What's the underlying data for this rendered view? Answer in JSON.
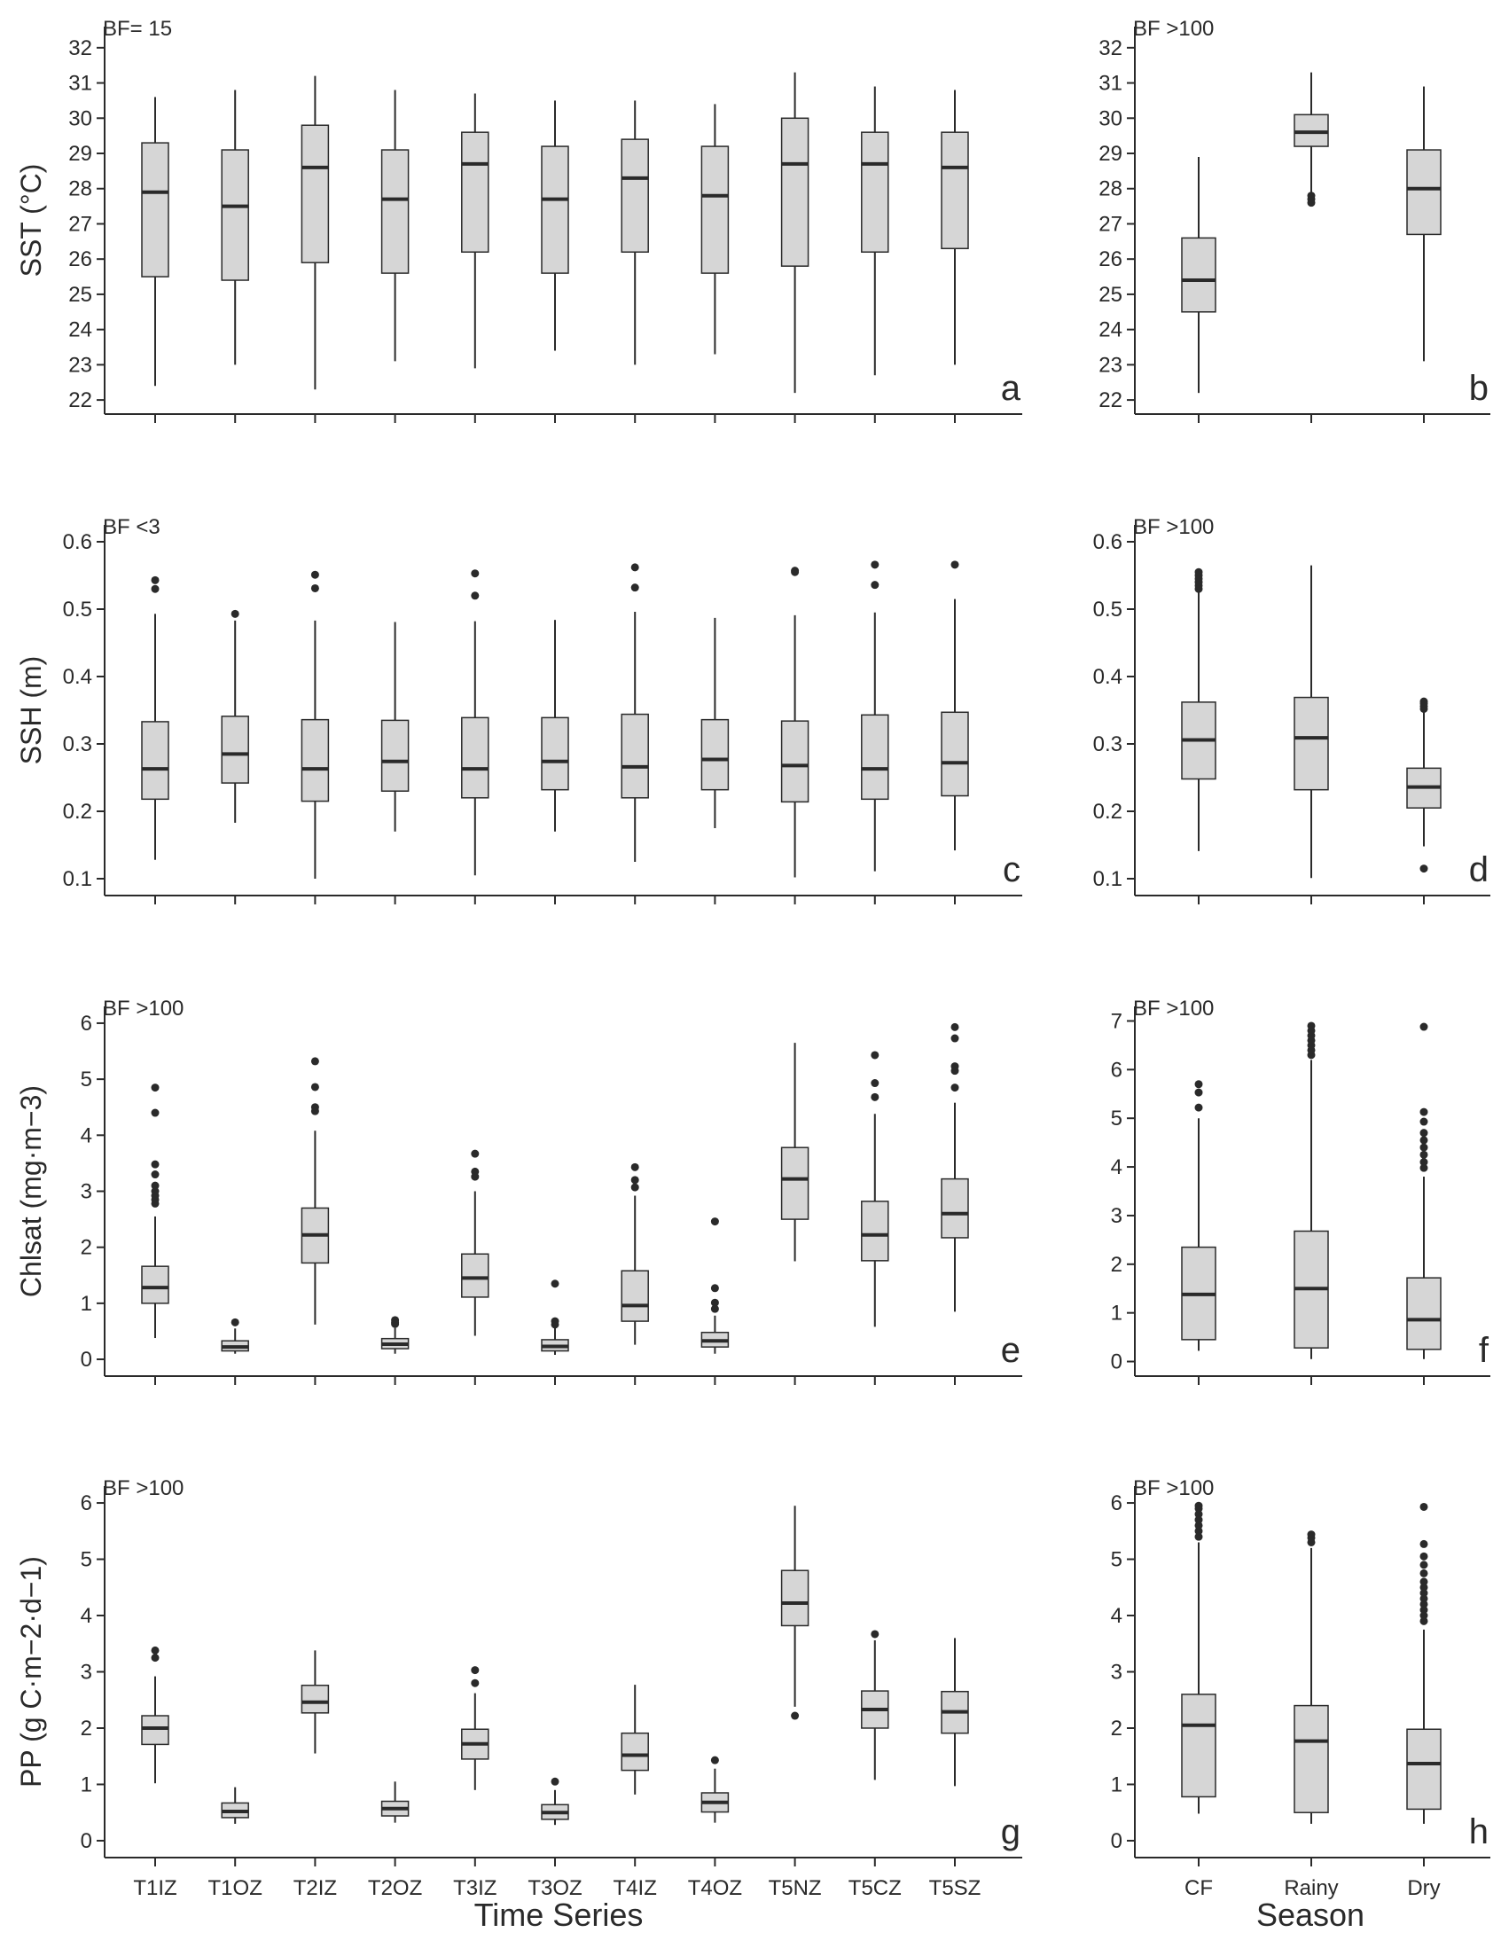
{
  "x_titles": {
    "left": "Time Series",
    "right": "Season"
  },
  "chart_data": [
    {
      "id": "a",
      "type": "box",
      "panel_letter": "a",
      "bf": "BF= 15",
      "ylabel": "SST (°C)",
      "ylim": [
        21.6,
        32.6
      ],
      "yticks": [
        22,
        23,
        24,
        25,
        26,
        27,
        28,
        29,
        30,
        31,
        32
      ],
      "categories": [
        "T1IZ",
        "T1OZ",
        "T2IZ",
        "T2OZ",
        "T3IZ",
        "T3OZ",
        "T4IZ",
        "T4OZ",
        "T5NZ",
        "T5CZ",
        "T5SZ"
      ],
      "boxes": [
        {
          "low": 22.4,
          "q1": 25.5,
          "median": 27.9,
          "q3": 29.3,
          "high": 30.6,
          "outliers": []
        },
        {
          "low": 23.0,
          "q1": 25.4,
          "median": 27.5,
          "q3": 29.1,
          "high": 30.8,
          "outliers": []
        },
        {
          "low": 22.3,
          "q1": 25.9,
          "median": 28.6,
          "q3": 29.8,
          "high": 31.2,
          "outliers": []
        },
        {
          "low": 23.1,
          "q1": 25.6,
          "median": 27.7,
          "q3": 29.1,
          "high": 30.8,
          "outliers": []
        },
        {
          "low": 22.9,
          "q1": 26.2,
          "median": 28.7,
          "q3": 29.6,
          "high": 30.7,
          "outliers": []
        },
        {
          "low": 23.4,
          "q1": 25.6,
          "median": 27.7,
          "q3": 29.2,
          "high": 30.5,
          "outliers": []
        },
        {
          "low": 23.0,
          "q1": 26.2,
          "median": 28.3,
          "q3": 29.4,
          "high": 30.5,
          "outliers": []
        },
        {
          "low": 23.3,
          "q1": 25.6,
          "median": 27.8,
          "q3": 29.2,
          "high": 30.4,
          "outliers": []
        },
        {
          "low": 22.2,
          "q1": 25.8,
          "median": 28.7,
          "q3": 30.0,
          "high": 31.3,
          "outliers": []
        },
        {
          "low": 22.7,
          "q1": 26.2,
          "median": 28.7,
          "q3": 29.6,
          "high": 30.9,
          "outliers": []
        },
        {
          "low": 23.0,
          "q1": 26.3,
          "median": 28.6,
          "q3": 29.6,
          "high": 30.8,
          "outliers": []
        }
      ]
    },
    {
      "id": "b",
      "type": "box",
      "panel_letter": "b",
      "bf": "BF >100",
      "ylabel": "",
      "ylim": [
        21.6,
        32.6
      ],
      "yticks": [
        22,
        23,
        24,
        25,
        26,
        27,
        28,
        29,
        30,
        31,
        32
      ],
      "categories": [
        "CF",
        "Rainy",
        "Dry"
      ],
      "boxes": [
        {
          "low": 22.2,
          "q1": 24.5,
          "median": 25.4,
          "q3": 26.6,
          "high": 28.9,
          "outliers": []
        },
        {
          "low": 27.9,
          "q1": 29.2,
          "median": 29.6,
          "q3": 30.1,
          "high": 31.3,
          "outliers": [
            27.6,
            27.7,
            27.8
          ]
        },
        {
          "low": 23.1,
          "q1": 26.7,
          "median": 28.0,
          "q3": 29.1,
          "high": 30.9,
          "outliers": []
        }
      ]
    },
    {
      "id": "c",
      "type": "box",
      "panel_letter": "c",
      "bf": "BF <3",
      "ylabel": "SSH (m)",
      "ylim": [
        0.075,
        0.625
      ],
      "yticks": [
        0.1,
        0.2,
        0.3,
        0.4,
        0.5,
        0.6
      ],
      "categories": [
        "T1IZ",
        "T1OZ",
        "T2IZ",
        "T2OZ",
        "T3IZ",
        "T3OZ",
        "T4IZ",
        "T4OZ",
        "T5NZ",
        "T5CZ",
        "T5SZ"
      ],
      "boxes": [
        {
          "low": 0.128,
          "q1": 0.218,
          "median": 0.263,
          "q3": 0.333,
          "high": 0.493,
          "outliers": [
            0.53,
            0.543
          ]
        },
        {
          "low": 0.183,
          "q1": 0.242,
          "median": 0.285,
          "q3": 0.341,
          "high": 0.483,
          "outliers": [
            0.493
          ]
        },
        {
          "low": 0.1,
          "q1": 0.215,
          "median": 0.263,
          "q3": 0.336,
          "high": 0.483,
          "outliers": [
            0.531,
            0.551
          ]
        },
        {
          "low": 0.17,
          "q1": 0.23,
          "median": 0.274,
          "q3": 0.335,
          "high": 0.481,
          "outliers": []
        },
        {
          "low": 0.105,
          "q1": 0.22,
          "median": 0.263,
          "q3": 0.339,
          "high": 0.482,
          "outliers": [
            0.52,
            0.553
          ]
        },
        {
          "low": 0.17,
          "q1": 0.232,
          "median": 0.274,
          "q3": 0.339,
          "high": 0.484,
          "outliers": []
        },
        {
          "low": 0.125,
          "q1": 0.22,
          "median": 0.266,
          "q3": 0.344,
          "high": 0.496,
          "outliers": [
            0.532,
            0.562
          ]
        },
        {
          "low": 0.175,
          "q1": 0.232,
          "median": 0.277,
          "q3": 0.336,
          "high": 0.487,
          "outliers": []
        },
        {
          "low": 0.102,
          "q1": 0.214,
          "median": 0.268,
          "q3": 0.334,
          "high": 0.491,
          "outliers": [
            0.555,
            0.557
          ]
        },
        {
          "low": 0.111,
          "q1": 0.218,
          "median": 0.263,
          "q3": 0.343,
          "high": 0.495,
          "outliers": [
            0.536,
            0.566
          ]
        },
        {
          "low": 0.142,
          "q1": 0.223,
          "median": 0.272,
          "q3": 0.347,
          "high": 0.515,
          "outliers": [
            0.566
          ]
        }
      ]
    },
    {
      "id": "d",
      "type": "box",
      "panel_letter": "d",
      "bf": "BF >100",
      "ylabel": "",
      "ylim": [
        0.075,
        0.625
      ],
      "yticks": [
        0.1,
        0.2,
        0.3,
        0.4,
        0.5,
        0.6
      ],
      "categories": [
        "CF",
        "Rainy",
        "Dry"
      ],
      "boxes": [
        {
          "low": 0.141,
          "q1": 0.248,
          "median": 0.306,
          "q3": 0.362,
          "high": 0.525,
          "outliers": [
            0.53,
            0.535,
            0.54,
            0.545,
            0.55,
            0.555
          ]
        },
        {
          "low": 0.101,
          "q1": 0.232,
          "median": 0.309,
          "q3": 0.369,
          "high": 0.565,
          "outliers": []
        },
        {
          "low": 0.148,
          "q1": 0.205,
          "median": 0.236,
          "q3": 0.264,
          "high": 0.35,
          "outliers": [
            0.115,
            0.352,
            0.356,
            0.36,
            0.363
          ]
        }
      ]
    },
    {
      "id": "e",
      "type": "box",
      "panel_letter": "e",
      "bf": "BF >100",
      "ylabel": "Chlsat (mg·m−3)",
      "ylim": [
        -0.3,
        6.3
      ],
      "yticks": [
        0,
        1,
        2,
        3,
        4,
        5,
        6
      ],
      "categories": [
        "T1IZ",
        "T1OZ",
        "T2IZ",
        "T2OZ",
        "T3IZ",
        "T3OZ",
        "T4IZ",
        "T4OZ",
        "T5NZ",
        "T5CZ",
        "T5SZ"
      ],
      "boxes": [
        {
          "low": 0.38,
          "q1": 1.0,
          "median": 1.28,
          "q3": 1.66,
          "high": 2.55,
          "outliers": [
            2.78,
            2.85,
            2.92,
            3.0,
            3.1,
            3.3,
            3.48,
            4.4,
            4.85
          ]
        },
        {
          "low": 0.1,
          "q1": 0.15,
          "median": 0.22,
          "q3": 0.33,
          "high": 0.55,
          "outliers": [
            0.66
          ]
        },
        {
          "low": 0.62,
          "q1": 1.72,
          "median": 2.22,
          "q3": 2.7,
          "high": 4.08,
          "outliers": [
            4.43,
            4.5,
            4.86,
            5.32
          ]
        },
        {
          "low": 0.1,
          "q1": 0.19,
          "median": 0.27,
          "q3": 0.37,
          "high": 0.56,
          "outliers": [
            0.63,
            0.66,
            0.7
          ]
        },
        {
          "low": 0.42,
          "q1": 1.11,
          "median": 1.45,
          "q3": 1.88,
          "high": 3.0,
          "outliers": [
            3.26,
            3.35,
            3.67
          ]
        },
        {
          "low": 0.08,
          "q1": 0.15,
          "median": 0.23,
          "q3": 0.35,
          "high": 0.56,
          "outliers": [
            0.62,
            0.68,
            1.35
          ]
        },
        {
          "low": 0.26,
          "q1": 0.68,
          "median": 0.96,
          "q3": 1.58,
          "high": 2.92,
          "outliers": [
            3.07,
            3.2,
            3.43
          ]
        },
        {
          "low": 0.1,
          "q1": 0.22,
          "median": 0.33,
          "q3": 0.48,
          "high": 0.78,
          "outliers": [
            0.9,
            1.01,
            1.27,
            2.46
          ]
        },
        {
          "low": 1.75,
          "q1": 2.5,
          "median": 3.22,
          "q3": 3.78,
          "high": 5.65,
          "outliers": []
        },
        {
          "low": 0.58,
          "q1": 1.76,
          "median": 2.22,
          "q3": 2.82,
          "high": 4.38,
          "outliers": [
            4.68,
            4.93,
            5.43
          ]
        },
        {
          "low": 0.85,
          "q1": 2.17,
          "median": 2.6,
          "q3": 3.22,
          "high": 4.58,
          "outliers": [
            4.85,
            5.15,
            5.23,
            5.73,
            5.93
          ]
        }
      ]
    },
    {
      "id": "f",
      "type": "box",
      "panel_letter": "f",
      "bf": "BF >100",
      "ylabel": "",
      "ylim": [
        -0.3,
        7.3
      ],
      "yticks": [
        0,
        1,
        2,
        3,
        4,
        5,
        6,
        7
      ],
      "categories": [
        "CF",
        "Rainy",
        "Dry"
      ],
      "boxes": [
        {
          "low": 0.22,
          "q1": 0.45,
          "median": 1.38,
          "q3": 2.35,
          "high": 5.0,
          "outliers": [
            5.22,
            5.53,
            5.7
          ]
        },
        {
          "low": 0.05,
          "q1": 0.28,
          "median": 1.5,
          "q3": 2.68,
          "high": 6.2,
          "outliers": [
            6.3,
            6.4,
            6.5,
            6.6,
            6.7,
            6.8,
            6.9
          ]
        },
        {
          "low": 0.05,
          "q1": 0.25,
          "median": 0.86,
          "q3": 1.72,
          "high": 3.8,
          "outliers": [
            3.98,
            4.1,
            4.25,
            4.4,
            4.55,
            4.7,
            4.93,
            5.13,
            6.88
          ]
        }
      ]
    },
    {
      "id": "g",
      "type": "box",
      "panel_letter": "g",
      "bf": "BF >100",
      "ylabel": "PP (g C·m−2·d−1)",
      "ylim": [
        -0.3,
        6.3
      ],
      "yticks": [
        0,
        1,
        2,
        3,
        4,
        5,
        6
      ],
      "categories": [
        "T1IZ",
        "T1OZ",
        "T2IZ",
        "T2OZ",
        "T3IZ",
        "T3OZ",
        "T4IZ",
        "T4OZ",
        "T5NZ",
        "T5CZ",
        "T5SZ"
      ],
      "boxes": [
        {
          "low": 1.02,
          "q1": 1.71,
          "median": 2.0,
          "q3": 2.22,
          "high": 2.92,
          "outliers": [
            3.25,
            3.38
          ]
        },
        {
          "low": 0.3,
          "q1": 0.41,
          "median": 0.52,
          "q3": 0.67,
          "high": 0.95,
          "outliers": []
        },
        {
          "low": 1.55,
          "q1": 2.27,
          "median": 2.46,
          "q3": 2.76,
          "high": 3.38,
          "outliers": []
        },
        {
          "low": 0.32,
          "q1": 0.44,
          "median": 0.57,
          "q3": 0.7,
          "high": 1.05,
          "outliers": []
        },
        {
          "low": 0.9,
          "q1": 1.45,
          "median": 1.72,
          "q3": 1.98,
          "high": 2.62,
          "outliers": [
            2.8,
            3.03
          ]
        },
        {
          "low": 0.28,
          "q1": 0.38,
          "median": 0.5,
          "q3": 0.64,
          "high": 0.9,
          "outliers": [
            1.05
          ]
        },
        {
          "low": 0.82,
          "q1": 1.25,
          "median": 1.52,
          "q3": 1.91,
          "high": 2.77,
          "outliers": []
        },
        {
          "low": 0.32,
          "q1": 0.51,
          "median": 0.68,
          "q3": 0.85,
          "high": 1.28,
          "outliers": [
            1.43
          ]
        },
        {
          "low": 2.38,
          "q1": 3.82,
          "median": 4.22,
          "q3": 4.8,
          "high": 5.95,
          "outliers": [
            2.22
          ]
        },
        {
          "low": 1.08,
          "q1": 2.0,
          "median": 2.33,
          "q3": 2.66,
          "high": 3.56,
          "outliers": [
            3.67
          ]
        },
        {
          "low": 0.97,
          "q1": 1.91,
          "median": 2.29,
          "q3": 2.65,
          "high": 3.6,
          "outliers": []
        }
      ]
    },
    {
      "id": "h",
      "type": "box",
      "panel_letter": "h",
      "bf": "BF >100",
      "ylabel": "",
      "ylim": [
        -0.3,
        6.3
      ],
      "yticks": [
        0,
        1,
        2,
        3,
        4,
        5,
        6
      ],
      "categories": [
        "CF",
        "Rainy",
        "Dry"
      ],
      "boxes": [
        {
          "low": 0.48,
          "q1": 0.78,
          "median": 2.05,
          "q3": 2.6,
          "high": 5.3,
          "outliers": [
            5.4,
            5.5,
            5.6,
            5.7,
            5.8,
            5.9,
            5.95
          ]
        },
        {
          "low": 0.3,
          "q1": 0.5,
          "median": 1.77,
          "q3": 2.4,
          "high": 5.2,
          "outliers": [
            5.3,
            5.38,
            5.44
          ]
        },
        {
          "low": 0.3,
          "q1": 0.56,
          "median": 1.37,
          "q3": 1.98,
          "high": 3.75,
          "outliers": [
            3.9,
            4.0,
            4.1,
            4.2,
            4.3,
            4.4,
            4.5,
            4.6,
            4.75,
            4.9,
            5.05,
            5.27,
            5.93
          ]
        }
      ]
    }
  ]
}
